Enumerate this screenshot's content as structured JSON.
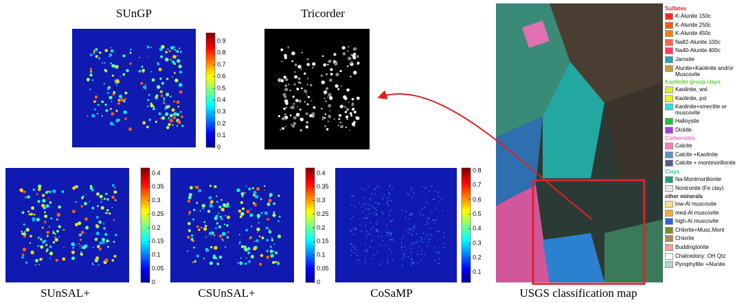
{
  "panels": [
    {
      "title": "SUnGP",
      "clim": [
        0,
        0.97
      ],
      "colorbar_ticks": [
        0,
        0.1,
        0.2,
        0.3,
        0.4,
        0.5,
        0.6,
        0.7,
        0.8,
        0.9
      ]
    },
    {
      "title": "Tricorder"
    },
    {
      "title": "SUnSAL+",
      "clim": [
        0,
        0.42
      ],
      "colorbar_ticks": [
        0,
        0.05,
        0.1,
        0.15,
        0.2,
        0.25,
        0.3,
        0.35,
        0.4
      ]
    },
    {
      "title": "CSUnSAL+",
      "clim": [
        0,
        0.42
      ],
      "colorbar_ticks": [
        0,
        0.05,
        0.1,
        0.15,
        0.2,
        0.25,
        0.3,
        0.35,
        0.4
      ]
    },
    {
      "title": "CoSaMP",
      "clim": [
        0.03,
        0.82
      ],
      "colorbar_ticks": [
        0.1,
        0.2,
        0.3,
        0.4,
        0.5,
        0.6,
        0.7,
        0.8
      ]
    }
  ],
  "usgs": {
    "title": "USGS classification map",
    "legend": [
      {
        "label": "Sulfates",
        "header": true,
        "color": "#e8202a"
      },
      {
        "label": "K-Alunite 150c",
        "color": "#ff2a1a"
      },
      {
        "label": "K-Alunite 250c",
        "color": "#ff5a00"
      },
      {
        "label": "K-Alunite 450c",
        "color": "#ff8000"
      },
      {
        "label": "Na82-Alunite 100c",
        "color": "#ff6a50"
      },
      {
        "label": "Na40-Alunite 400c",
        "color": "#ff4060"
      },
      {
        "label": "Jarosite",
        "color": "#2aa0c0"
      },
      {
        "label": "Alunite+Kaolinite and/or Muscovite",
        "color": "#c8a030"
      },
      {
        "label": "Kaolinite group clays",
        "header": true,
        "color": "#66cc33"
      },
      {
        "label": "Kaolinite, wxl",
        "color": "#d8f030"
      },
      {
        "label": "Kaolinite, pxl",
        "color": "#f0f020"
      },
      {
        "label": "Kaolinite+smectite or muscovite",
        "color": "#30e0e0"
      },
      {
        "label": "Halloysite",
        "color": "#20c040"
      },
      {
        "label": "Dickite",
        "color": "#a040e0"
      },
      {
        "label": "Carbonates",
        "header": true,
        "color": "#ff66cc"
      },
      {
        "label": "Calcite",
        "color": "#ff80b0"
      },
      {
        "label": "Calcite +Kaolinite",
        "color": "#6090c0"
      },
      {
        "label": "Calcite + montmorillonite",
        "color": "#506080"
      },
      {
        "label": "Clays",
        "header": true,
        "color": "#30c0a0"
      },
      {
        "label": "Na-Montmorillonite",
        "color": "#20a080"
      },
      {
        "label": "Nontronite (Fe clay)",
        "color": "#e4e4e4"
      },
      {
        "label": "other minerals",
        "header": true,
        "color": "#222222"
      },
      {
        "label": "low-Al muscovite",
        "color": "#f8e080"
      },
      {
        "label": "med-Al muscovite",
        "color": "#f0b030"
      },
      {
        "label": "high-Al muscovite",
        "color": "#3060e0"
      },
      {
        "label": "Chlorite+Musc,Mont",
        "color": "#809020"
      },
      {
        "label": "Chlorite",
        "color": "#b08860"
      },
      {
        "label": "Buddingtonite",
        "color": "#f0a0a0"
      },
      {
        "label": "Chalcedony: OH Qtz",
        "color": "#ffffff"
      },
      {
        "label": "Pyrophyllite +Alunite",
        "color": "#b0d8c0"
      }
    ]
  }
}
